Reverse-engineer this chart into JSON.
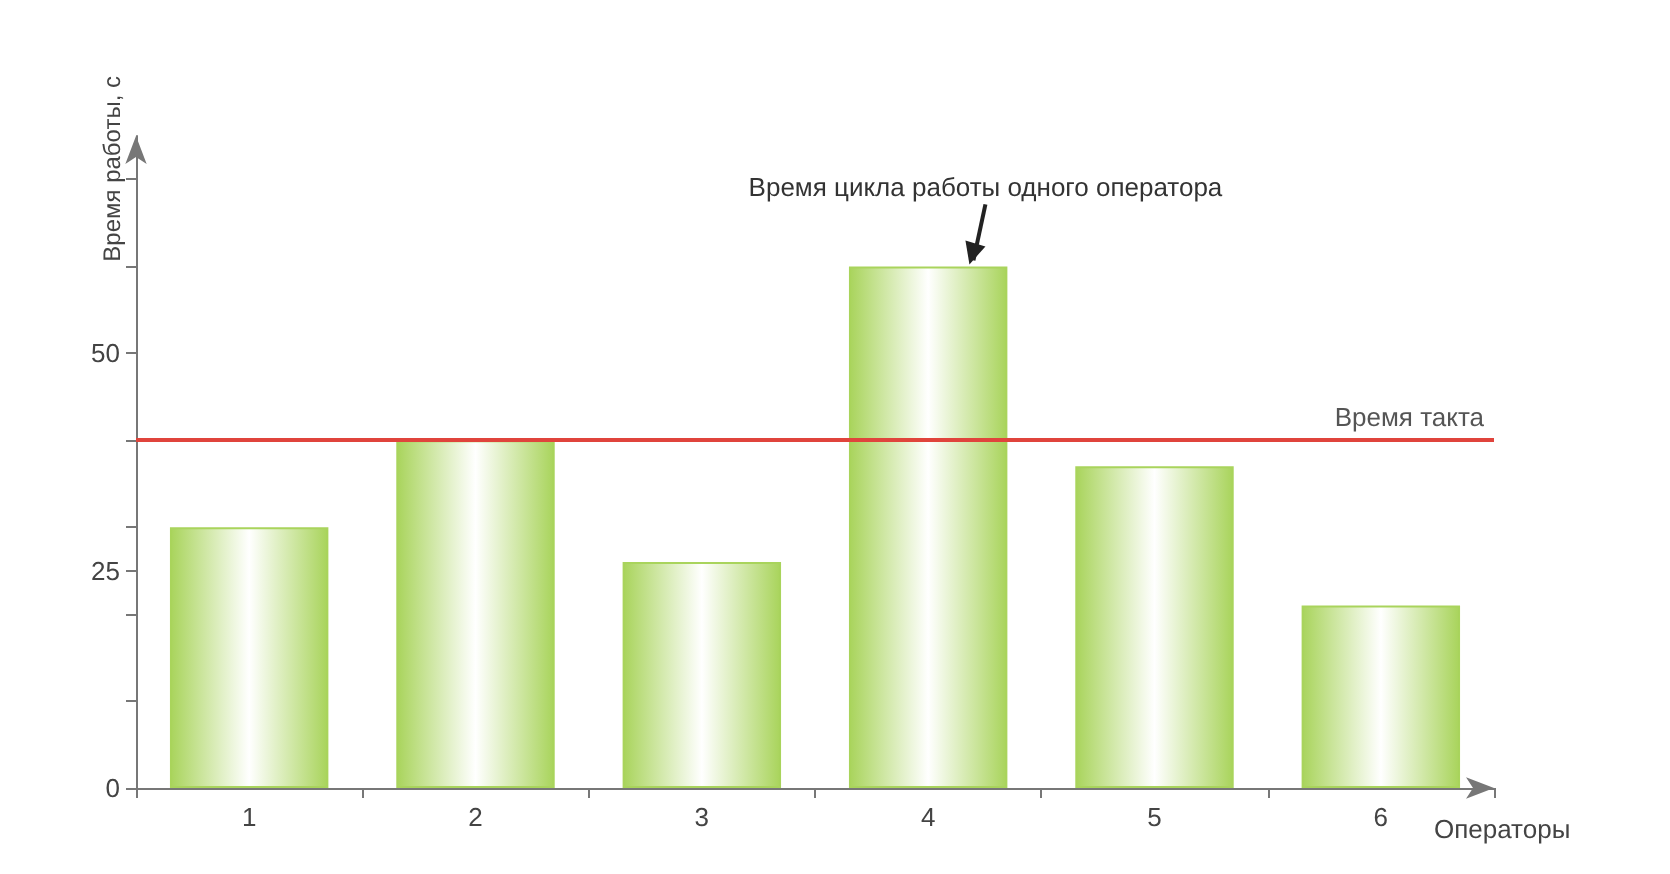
{
  "chart_data": {
    "type": "bar",
    "xlabel": "Операторы",
    "ylabel": "Время работы, с",
    "categories": [
      "1",
      "2",
      "3",
      "4",
      "5",
      "6"
    ],
    "values": [
      30,
      40,
      26,
      60,
      37,
      21
    ],
    "color": "#a9d45c",
    "ylim": [
      0,
      75
    ],
    "yticks": [
      0,
      {
        "value": 10,
        "label": null
      },
      {
        "value": 20,
        "label": null
      },
      25,
      {
        "value": 30,
        "label": null
      },
      {
        "value": 40,
        "label": null
      },
      50,
      {
        "value": 60,
        "label": null
      },
      {
        "value": 70,
        "label": null
      }
    ],
    "grid": false,
    "ref_lines": [
      {
        "axis": "y",
        "value": 40,
        "label": "Время такта",
        "color": "#e0443c"
      }
    ],
    "annotations": [
      {
        "text": "Время цикла работы одного оператора",
        "x": "4",
        "y": 60
      }
    ]
  }
}
